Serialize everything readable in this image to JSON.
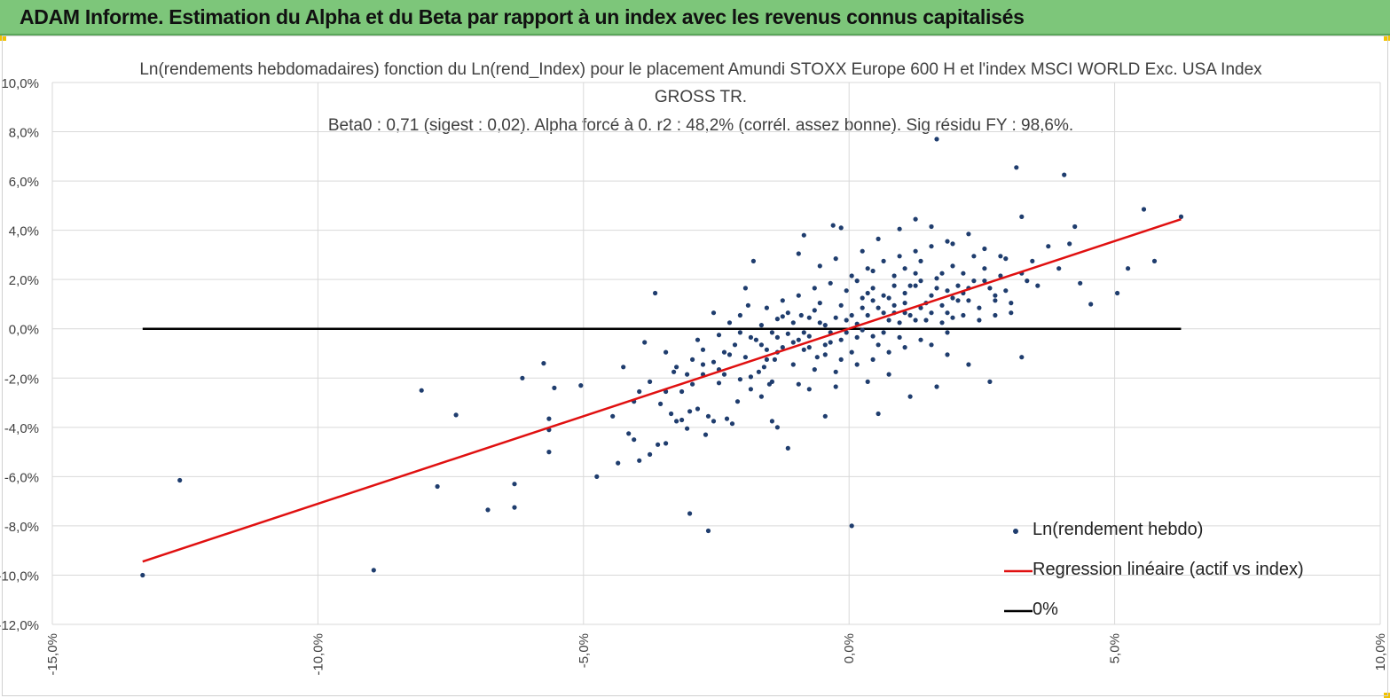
{
  "header": {
    "title": "ADAM Informe. Estimation du Alpha et du Beta par rapport à un index avec les revenus connus capitalisés"
  },
  "colors": {
    "banner": "#7dc67a",
    "points": "#1f3d6e",
    "regression": "#e01010",
    "zero_line": "#000000",
    "grid": "#d9d9d9"
  },
  "chart_data": {
    "type": "scatter",
    "title_lines": [
      "Ln(rendements hebdomadaires) fonction du Ln(rend_Index) pour le placement Amundi STOXX Europe 600 H et l'index MSCI WORLD Exc. USA Index",
      "GROSS TR.",
      "Beta0 : 0,71  (sigest : 0,02). Alpha forcé à 0. r2 : 48,2% (corrél. assez bonne). Sig résidu FY : 98,6%."
    ],
    "xlim": [
      -0.15,
      0.1
    ],
    "ylim": [
      -0.12,
      0.1
    ],
    "x_tick_labels": [
      "-15,0%",
      "-10,0%",
      "-5,0%",
      "0,0%",
      "5,0%",
      "10,0%"
    ],
    "x_ticks": [
      -0.15,
      -0.1,
      -0.05,
      0.0,
      0.05,
      0.1
    ],
    "y_tick_labels": [
      "10,0%",
      "8,0%",
      "6,0%",
      "4,0%",
      "2,0%",
      "0,0%",
      "-2,0%",
      "-4,0%",
      "-6,0%",
      "-8,0%",
      "-10,0%",
      "-12,0%"
    ],
    "y_ticks": [
      0.1,
      0.08,
      0.06,
      0.04,
      0.02,
      0.0,
      -0.02,
      -0.04,
      -0.06,
      -0.08,
      -0.1,
      -0.12
    ],
    "grid": true,
    "legend_position": "bottom-right",
    "series": [
      {
        "name": "Ln(rendement hebdo)",
        "kind": "scatter",
        "points": [
          [
            -0.133,
            -0.1
          ],
          [
            -0.126,
            -0.0615
          ],
          [
            -0.0895,
            -0.098
          ],
          [
            -0.0805,
            -0.025
          ],
          [
            -0.0775,
            -0.064
          ],
          [
            -0.074,
            -0.035
          ],
          [
            -0.068,
            -0.0735
          ],
          [
            -0.063,
            -0.063
          ],
          [
            -0.063,
            -0.0725
          ],
          [
            -0.0615,
            -0.02
          ],
          [
            -0.0575,
            -0.014
          ],
          [
            -0.0565,
            -0.0365
          ],
          [
            -0.0565,
            -0.041
          ],
          [
            -0.0565,
            -0.05
          ],
          [
            -0.0555,
            -0.024
          ],
          [
            -0.0505,
            -0.023
          ],
          [
            -0.0475,
            -0.06
          ],
          [
            -0.0445,
            -0.0355
          ],
          [
            -0.0435,
            -0.0545
          ],
          [
            -0.0425,
            -0.0155
          ],
          [
            -0.0415,
            -0.0425
          ],
          [
            -0.0405,
            -0.045
          ],
          [
            -0.0405,
            -0.0295
          ],
          [
            -0.0395,
            -0.0535
          ],
          [
            -0.0385,
            -0.0055
          ],
          [
            -0.0375,
            -0.051
          ],
          [
            -0.0365,
            0.0145
          ],
          [
            -0.036,
            -0.047
          ],
          [
            -0.0345,
            -0.0465
          ],
          [
            -0.0335,
            -0.0345
          ],
          [
            -0.033,
            -0.0175
          ],
          [
            -0.0325,
            -0.0375
          ],
          [
            -0.0315,
            -0.037
          ],
          [
            -0.0305,
            -0.0405
          ],
          [
            -0.03,
            -0.0335
          ],
          [
            -0.0295,
            -0.0125
          ],
          [
            -0.0285,
            -0.0325
          ],
          [
            -0.0275,
            -0.0145
          ],
          [
            -0.027,
            -0.043
          ],
          [
            -0.0265,
            -0.0355
          ],
          [
            -0.0255,
            -0.0375
          ],
          [
            -0.0245,
            -0.022
          ],
          [
            -0.0235,
            -0.0185
          ],
          [
            -0.023,
            -0.0365
          ],
          [
            -0.022,
            -0.0385
          ],
          [
            -0.021,
            -0.0295
          ],
          [
            -0.0205,
            -0.0205
          ],
          [
            -0.0195,
            0.0165
          ],
          [
            -0.019,
            0.0095
          ],
          [
            -0.0185,
            -0.0245
          ],
          [
            -0.017,
            -0.0175
          ],
          [
            -0.0165,
            -0.0065
          ],
          [
            -0.016,
            -0.0155
          ],
          [
            -0.015,
            -0.0225
          ],
          [
            -0.0145,
            -0.0375
          ],
          [
            -0.014,
            -0.0125
          ],
          [
            -0.0135,
            0.004
          ],
          [
            -0.0125,
            0.005
          ],
          [
            -0.0115,
            -0.002
          ],
          [
            -0.0105,
            -0.0145
          ],
          [
            -0.0095,
            -0.0225
          ],
          [
            -0.009,
            0.0055
          ],
          [
            -0.0085,
            -0.0085
          ],
          [
            -0.0075,
            -0.003
          ],
          [
            -0.0065,
            -0.0165
          ],
          [
            -0.006,
            -0.0115
          ],
          [
            -0.0055,
            0.0025
          ],
          [
            -0.0045,
            -0.0065
          ],
          [
            -0.0035,
            -0.0015
          ],
          [
            -0.0025,
            -0.0175
          ],
          [
            -0.0015,
            -0.0045
          ],
          [
            -0.0005,
            0.0035
          ],
          [
            0.0005,
            -0.0095
          ],
          [
            0.0015,
            0.002
          ],
          [
            0.0025,
            -0.0005
          ],
          [
            0.0035,
            0.0055
          ],
          [
            0.0045,
            -0.003
          ],
          [
            0.0055,
            0.0085
          ],
          [
            0.0065,
            -0.0015
          ],
          [
            0.0075,
            0.0125
          ],
          [
            0.0085,
            0.0065
          ],
          [
            0.0095,
            0.0025
          ],
          [
            0.0105,
            0.0105
          ],
          [
            0.0115,
            0.0055
          ],
          [
            0.0125,
            0.0175
          ],
          [
            0.0135,
            0.0085
          ],
          [
            0.0145,
            0.0035
          ],
          [
            0.0155,
            0.0135
          ],
          [
            0.0165,
            0.0205
          ],
          [
            0.0175,
            0.0095
          ],
          [
            0.0185,
            0.0155
          ],
          [
            0.0195,
            0.0045
          ],
          [
            0.0205,
            0.0175
          ],
          [
            0.0215,
            0.0225
          ],
          [
            0.0225,
            0.0115
          ],
          [
            0.0235,
            0.0195
          ],
          [
            0.0245,
            0.0085
          ],
          [
            0.0255,
            0.0245
          ],
          [
            0.0265,
            0.0165
          ],
          [
            0.0275,
            0.0135
          ],
          [
            0.0285,
            0.0215
          ],
          [
            0.0295,
            0.0285
          ],
          [
            0.0305,
            0.0065
          ],
          [
            0.0315,
            0.0655
          ],
          [
            0.0325,
            0.0455
          ],
          [
            0.0335,
            0.0195
          ],
          [
            0.0345,
            0.0275
          ],
          [
            0.0355,
            0.0175
          ],
          [
            0.0375,
            0.0335
          ],
          [
            0.0395,
            0.0245
          ],
          [
            0.0405,
            0.0625
          ],
          [
            0.0415,
            0.0345
          ],
          [
            0.0425,
            0.0415
          ],
          [
            0.0435,
            0.0185
          ],
          [
            0.0455,
            0.01
          ],
          [
            0.0505,
            0.0145
          ],
          [
            0.0525,
            0.0245
          ],
          [
            0.0555,
            0.0485
          ],
          [
            0.0575,
            0.0275
          ],
          [
            0.0625,
            0.0455
          ],
          [
            -0.003,
            0.042
          ],
          [
            -0.0015,
            0.041
          ],
          [
            -0.0085,
            0.038
          ],
          [
            -0.018,
            0.0275
          ],
          [
            -0.0095,
            0.0305
          ],
          [
            -0.0055,
            0.0255
          ],
          [
            -0.0025,
            0.0285
          ],
          [
            0.0025,
            0.0315
          ],
          [
            0.0055,
            0.0365
          ],
          [
            0.0095,
            0.0405
          ],
          [
            0.0125,
            0.0445
          ],
          [
            0.0155,
            0.0415
          ],
          [
            0.0185,
            0.0355
          ],
          [
            0.0225,
            0.0385
          ],
          [
            0.0255,
            0.0325
          ],
          [
            0.0285,
            0.0295
          ],
          [
            0.0165,
            0.077
          ],
          [
            0.0005,
            -0.08
          ],
          [
            -0.03,
            -0.075
          ],
          [
            -0.0265,
            -0.082
          ],
          [
            -0.0115,
            -0.0485
          ],
          [
            -0.0135,
            -0.04
          ],
          [
            -0.0045,
            -0.0355
          ],
          [
            0.0055,
            -0.0345
          ],
          [
            0.0115,
            -0.0275
          ],
          [
            0.0165,
            -0.0235
          ],
          [
            0.0225,
            -0.0145
          ],
          [
            0.0265,
            -0.0215
          ],
          [
            0.0325,
            -0.0115
          ],
          [
            0.0035,
            -0.0215
          ],
          [
            0.0075,
            -0.0185
          ],
          [
            -0.0075,
            -0.0245
          ],
          [
            -0.0025,
            -0.0235
          ],
          [
            0.0085,
            0.0215
          ],
          [
            0.0045,
            0.0235
          ],
          [
            0.0015,
            0.0195
          ],
          [
            -0.0005,
            0.0155
          ],
          [
            0.0105,
            0.0245
          ],
          [
            0.0135,
            0.0275
          ],
          [
            0.0175,
            0.0225
          ],
          [
            0.0195,
            0.0255
          ],
          [
            0.0215,
            0.0145
          ],
          [
            0.0245,
            0.0035
          ],
          [
            0.0275,
            0.0055
          ],
          [
            0.0135,
            -0.0045
          ],
          [
            0.0105,
            -0.0075
          ],
          [
            0.0075,
            -0.0095
          ],
          [
            0.0045,
            -0.0125
          ],
          [
            0.0015,
            -0.0145
          ],
          [
            -0.0015,
            -0.0125
          ],
          [
            -0.0045,
            -0.0105
          ],
          [
            -0.0075,
            -0.0075
          ],
          [
            -0.0105,
            -0.0055
          ],
          [
            -0.0135,
            -0.0035
          ],
          [
            -0.0155,
            -0.0085
          ],
          [
            -0.0175,
            -0.0045
          ],
          [
            -0.0195,
            -0.0115
          ],
          [
            -0.0215,
            -0.0065
          ],
          [
            -0.0235,
            -0.0095
          ],
          [
            -0.0255,
            -0.0135
          ],
          [
            -0.0275,
            -0.0185
          ],
          [
            -0.0295,
            -0.0225
          ],
          [
            -0.0315,
            -0.0255
          ],
          [
            -0.0345,
            -0.0255
          ],
          [
            -0.0375,
            -0.0215
          ],
          [
            -0.0345,
            -0.0095
          ],
          [
            -0.0245,
            -0.0025
          ],
          [
            -0.0205,
            0.0055
          ],
          [
            -0.0155,
            0.0085
          ],
          [
            -0.0125,
            0.0115
          ],
          [
            -0.0095,
            0.0135
          ],
          [
            -0.0065,
            0.0165
          ],
          [
            -0.0035,
            0.0185
          ],
          [
            0.0005,
            0.0215
          ],
          [
            0.0035,
            0.0245
          ],
          [
            0.0065,
            0.0275
          ],
          [
            0.0095,
            0.0295
          ],
          [
            0.0125,
            0.0315
          ],
          [
            0.0155,
            0.0335
          ],
          [
            0.0195,
            0.0345
          ],
          [
            0.0235,
            0.0295
          ],
          [
            0.0255,
            0.0195
          ],
          [
            0.0295,
            0.0155
          ],
          [
            0.0305,
            0.0105
          ],
          [
            0.0325,
            0.0225
          ],
          [
            0.0275,
            0.0115
          ],
          [
            0.0215,
            0.0055
          ],
          [
            0.0185,
            -0.0015
          ],
          [
            0.0155,
            -0.0065
          ],
          [
            0.0185,
            -0.0105
          ],
          [
            0.0005,
            0.0055
          ],
          [
            0.0025,
            0.0085
          ],
          [
            0.0045,
            0.0115
          ],
          [
            0.0065,
            0.0065
          ],
          [
            0.0085,
            0.0095
          ],
          [
            0.0105,
            0.0145
          ],
          [
            0.0125,
            0.0035
          ],
          [
            0.0145,
            0.0105
          ],
          [
            0.0165,
            0.0165
          ],
          [
            0.0185,
            0.0065
          ],
          [
            0.0205,
            0.0115
          ],
          [
            0.0225,
            0.0165
          ],
          [
            -0.0005,
            -0.0015
          ],
          [
            -0.0025,
            0.0045
          ],
          [
            -0.0045,
            0.0015
          ],
          [
            -0.0065,
            0.0075
          ],
          [
            -0.0085,
            -0.0015
          ],
          [
            -0.0105,
            0.0025
          ],
          [
            -0.0125,
            -0.0075
          ],
          [
            -0.0145,
            -0.0015
          ],
          [
            -0.0165,
            0.0015
          ],
          [
            -0.0185,
            -0.0035
          ],
          [
            -0.0205,
            -0.0015
          ],
          [
            -0.0225,
            -0.0105
          ],
          [
            -0.0035,
            -0.0055
          ],
          [
            -0.0015,
            0.0095
          ],
          [
            0.0015,
            -0.0035
          ],
          [
            0.0035,
            0.0145
          ],
          [
            0.0055,
            -0.0065
          ],
          [
            0.0075,
            0.0035
          ],
          [
            0.0095,
            -0.0035
          ],
          [
            0.0115,
            0.0175
          ],
          [
            0.0135,
            0.0195
          ],
          [
            0.0155,
            0.0065
          ],
          [
            0.0175,
            0.0025
          ],
          [
            0.0195,
            0.0125
          ],
          [
            -0.0055,
            0.0105
          ],
          [
            -0.0075,
            0.0045
          ],
          [
            -0.0095,
            -0.0045
          ],
          [
            -0.0115,
            0.0065
          ],
          [
            -0.0135,
            -0.0095
          ],
          [
            -0.0155,
            -0.0125
          ],
          [
            0.0025,
            0.0125
          ],
          [
            0.0045,
            0.0165
          ],
          [
            0.0065,
            0.0135
          ],
          [
            0.0085,
            0.0175
          ],
          [
            0.0105,
            0.0065
          ],
          [
            0.0125,
            0.0225
          ],
          [
            -0.0275,
            -0.0085
          ],
          [
            -0.0305,
            -0.0185
          ],
          [
            -0.0285,
            -0.0045
          ],
          [
            -0.0325,
            -0.0155
          ],
          [
            -0.0355,
            -0.0305
          ],
          [
            -0.0395,
            -0.0255
          ],
          [
            -0.0225,
            0.0025
          ],
          [
            -0.0255,
            0.0065
          ],
          [
            -0.0245,
            -0.0165
          ],
          [
            -0.0185,
            -0.0195
          ],
          [
            -0.0165,
            -0.0275
          ],
          [
            -0.0145,
            -0.0215
          ]
        ]
      },
      {
        "name": "Regression linéaire (actif vs index)",
        "kind": "line",
        "x": [
          -0.133,
          0.0625
        ],
        "y": [
          -0.0945,
          0.0445
        ]
      },
      {
        "name": "0%",
        "kind": "line",
        "x": [
          -0.133,
          0.0625
        ],
        "y": [
          0.0,
          0.0
        ]
      }
    ]
  }
}
